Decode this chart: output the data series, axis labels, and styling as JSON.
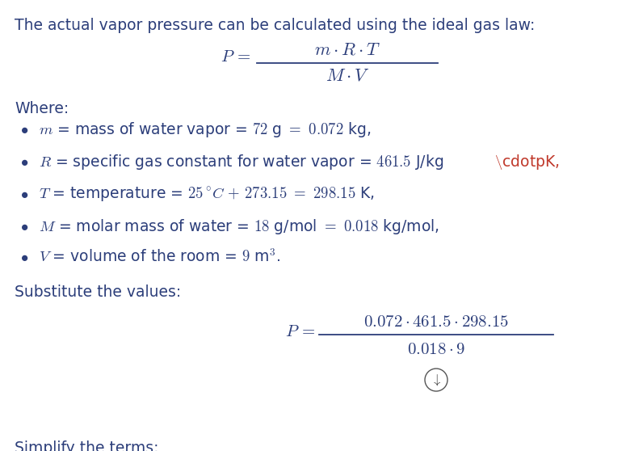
{
  "bg_color": "#ffffff",
  "text_color": "#2c3e7a",
  "red_color": "#c0392b",
  "intro_text": "The actual vapor pressure can be calculated using the ideal gas law:",
  "where_text": "Where:",
  "substitute_text": "Substitute the values:",
  "simplify_text": "Simplify the terms:",
  "figsize": [
    7.75,
    5.58
  ],
  "dpi": 100
}
